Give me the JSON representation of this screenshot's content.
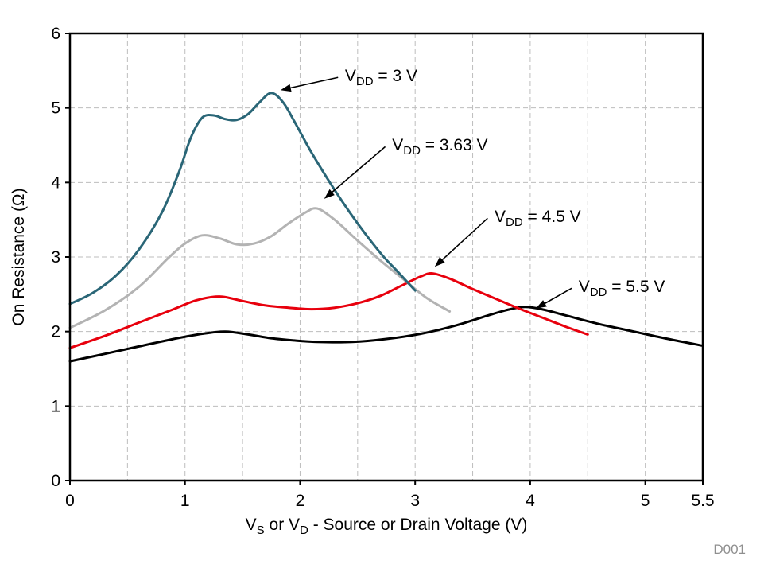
{
  "chart_data": {
    "type": "line",
    "title": "",
    "xlabel_parts": [
      {
        "t": "V"
      },
      {
        "sub": "S"
      },
      {
        "t": " or V"
      },
      {
        "sub": "D"
      },
      {
        "t": " - Source or Drain Voltage (V)"
      }
    ],
    "xlabel": "VS or VD - Source or Drain Voltage (V)",
    "ylabel": "On Resistance (Ω)",
    "watermark": "D001",
    "xlim": [
      0,
      5.5
    ],
    "ylim": [
      0,
      6
    ],
    "xticks": [
      0,
      1,
      2,
      3,
      4,
      5,
      5.5
    ],
    "xtick_labels": [
      "0",
      "1",
      "2",
      "3",
      "4",
      "5",
      "5.5"
    ],
    "yticks": [
      0,
      1,
      2,
      3,
      4,
      5,
      6
    ],
    "ytick_labels": [
      "0",
      "1",
      "2",
      "3",
      "4",
      "5",
      "6"
    ],
    "grid": {
      "x_step": 0.5,
      "y_step": 1,
      "dashed": true,
      "color": "#bdbdbd"
    },
    "frame_color": "#000000",
    "series": [
      {
        "name": "VDD = 5.5 V",
        "color": "#000000",
        "points": [
          [
            0,
            1.6
          ],
          [
            0.3,
            1.7
          ],
          [
            0.6,
            1.8
          ],
          [
            0.9,
            1.9
          ],
          [
            1.15,
            1.97
          ],
          [
            1.35,
            2.0
          ],
          [
            1.55,
            1.96
          ],
          [
            1.75,
            1.91
          ],
          [
            1.95,
            1.88
          ],
          [
            2.15,
            1.86
          ],
          [
            2.45,
            1.86
          ],
          [
            2.75,
            1.9
          ],
          [
            3.05,
            1.97
          ],
          [
            3.35,
            2.08
          ],
          [
            3.6,
            2.2
          ],
          [
            3.8,
            2.29
          ],
          [
            3.95,
            2.33
          ],
          [
            4.1,
            2.3
          ],
          [
            4.3,
            2.22
          ],
          [
            4.6,
            2.1
          ],
          [
            4.9,
            2.0
          ],
          [
            5.2,
            1.9
          ],
          [
            5.5,
            1.81
          ]
        ]
      },
      {
        "name": "VDD = 4.5 V",
        "color": "#e8000d",
        "points": [
          [
            0,
            1.78
          ],
          [
            0.3,
            1.94
          ],
          [
            0.6,
            2.12
          ],
          [
            0.9,
            2.3
          ],
          [
            1.1,
            2.42
          ],
          [
            1.3,
            2.47
          ],
          [
            1.5,
            2.41
          ],
          [
            1.7,
            2.35
          ],
          [
            1.9,
            2.32
          ],
          [
            2.1,
            2.3
          ],
          [
            2.3,
            2.32
          ],
          [
            2.5,
            2.38
          ],
          [
            2.7,
            2.48
          ],
          [
            2.9,
            2.63
          ],
          [
            3.05,
            2.74
          ],
          [
            3.15,
            2.78
          ],
          [
            3.3,
            2.71
          ],
          [
            3.5,
            2.57
          ],
          [
            3.7,
            2.44
          ],
          [
            3.9,
            2.31
          ],
          [
            4.1,
            2.19
          ],
          [
            4.3,
            2.07
          ],
          [
            4.5,
            1.96
          ]
        ]
      },
      {
        "name": "VDD = 3.63 V",
        "color": "#b3b3b3",
        "points": [
          [
            0,
            2.05
          ],
          [
            0.3,
            2.28
          ],
          [
            0.6,
            2.6
          ],
          [
            0.85,
            2.98
          ],
          [
            1.0,
            3.18
          ],
          [
            1.15,
            3.29
          ],
          [
            1.3,
            3.25
          ],
          [
            1.45,
            3.17
          ],
          [
            1.6,
            3.18
          ],
          [
            1.75,
            3.28
          ],
          [
            1.9,
            3.45
          ],
          [
            2.05,
            3.6
          ],
          [
            2.15,
            3.65
          ],
          [
            2.3,
            3.5
          ],
          [
            2.5,
            3.22
          ],
          [
            2.7,
            2.95
          ],
          [
            2.9,
            2.7
          ],
          [
            3.1,
            2.45
          ],
          [
            3.3,
            2.27
          ]
        ]
      },
      {
        "name": "VDD = 3 V",
        "color": "#2a6677",
        "points": [
          [
            0,
            2.37
          ],
          [
            0.2,
            2.52
          ],
          [
            0.4,
            2.75
          ],
          [
            0.6,
            3.1
          ],
          [
            0.8,
            3.6
          ],
          [
            0.95,
            4.15
          ],
          [
            1.05,
            4.6
          ],
          [
            1.15,
            4.87
          ],
          [
            1.25,
            4.9
          ],
          [
            1.35,
            4.85
          ],
          [
            1.45,
            4.84
          ],
          [
            1.55,
            4.92
          ],
          [
            1.65,
            5.08
          ],
          [
            1.75,
            5.2
          ],
          [
            1.85,
            5.08
          ],
          [
            1.95,
            4.82
          ],
          [
            2.1,
            4.4
          ],
          [
            2.3,
            3.9
          ],
          [
            2.5,
            3.45
          ],
          [
            2.7,
            3.05
          ],
          [
            2.85,
            2.8
          ],
          [
            3.0,
            2.55
          ]
        ]
      }
    ],
    "annotations": [
      {
        "pre": "V",
        "sub": "DD",
        "post": " = 3 V",
        "label_x": 2.39,
        "label_y": 5.36,
        "tail_x": 2.33,
        "tail_y": 5.41,
        "tip_x": 1.83,
        "tip_y": 5.24
      },
      {
        "pre": "V",
        "sub": "DD",
        "post": " = 3.63 V",
        "label_x": 2.8,
        "label_y": 4.43,
        "tail_x": 2.74,
        "tail_y": 4.48,
        "tip_x": 2.21,
        "tip_y": 3.78
      },
      {
        "pre": "V",
        "sub": "DD",
        "post": " = 4.5 V",
        "label_x": 3.69,
        "label_y": 3.47,
        "tail_x": 3.63,
        "tail_y": 3.52,
        "tip_x": 3.17,
        "tip_y": 2.87
      },
      {
        "pre": "V",
        "sub": "DD",
        "post": " = 5.5 V",
        "label_x": 4.42,
        "label_y": 2.53,
        "tail_x": 4.36,
        "tail_y": 2.58,
        "tip_x": 4.05,
        "tip_y": 2.31
      }
    ]
  }
}
